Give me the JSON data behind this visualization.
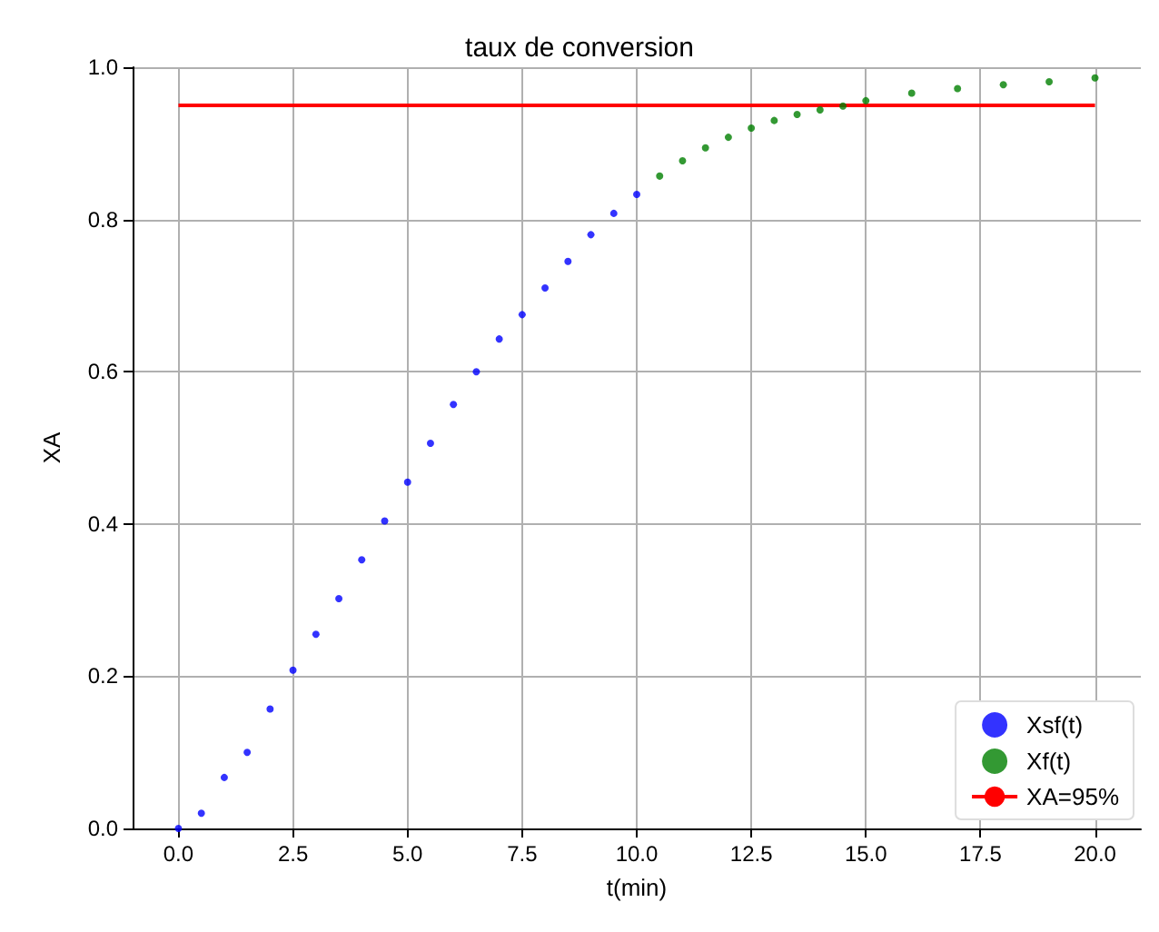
{
  "chart_data": {
    "type": "scatter",
    "title": "taux de conversion",
    "xlabel": "t(min)",
    "ylabel": "XA",
    "xlim": [
      -1,
      21
    ],
    "ylim": [
      0,
      1
    ],
    "xticks": [
      {
        "value": 0,
        "label": "0.0"
      },
      {
        "value": 2.5,
        "label": "2.5"
      },
      {
        "value": 5,
        "label": "5.0"
      },
      {
        "value": 7.5,
        "label": "7.5"
      },
      {
        "value": 10,
        "label": "10.0"
      },
      {
        "value": 12.5,
        "label": "12.5"
      },
      {
        "value": 15,
        "label": "15.0"
      },
      {
        "value": 17.5,
        "label": "17.5"
      },
      {
        "value": 20,
        "label": "20.0"
      }
    ],
    "yticks": [
      {
        "value": 0,
        "label": "0.0"
      },
      {
        "value": 0.2,
        "label": "0.2"
      },
      {
        "value": 0.4,
        "label": "0.4"
      },
      {
        "value": 0.6,
        "label": "0.6"
      },
      {
        "value": 0.8,
        "label": "0.8"
      },
      {
        "value": 1,
        "label": "1.0"
      }
    ],
    "grid": true,
    "legend": "bottom right",
    "marker": "circle",
    "series": [
      {
        "name": "Xsf(t)",
        "color": "#0000ff",
        "x": [
          0,
          0.5,
          1,
          1.5,
          2,
          2.5,
          3,
          3.5,
          4,
          4.5,
          5,
          5.5,
          6,
          6.5,
          7,
          7.5,
          8,
          8.5,
          9,
          9.5,
          10
        ],
        "values": [
          0,
          0.02,
          0.067,
          0.1,
          0.157,
          0.208,
          0.255,
          0.302,
          0.353,
          0.404,
          0.455,
          0.506,
          0.557,
          0.6,
          0.643,
          0.675,
          0.71,
          0.745,
          0.78,
          0.808,
          0.833
        ]
      },
      {
        "name": "Xf(t)",
        "color": "#008000",
        "x": [
          10.5,
          11,
          11.5,
          12,
          12.5,
          13,
          13.5,
          14,
          14.5,
          15,
          16,
          17,
          18,
          19,
          20
        ],
        "values": [
          0.857,
          0.877,
          0.894,
          0.908,
          0.92,
          0.93,
          0.938,
          0.944,
          0.949,
          0.956,
          0.966,
          0.972,
          0.977,
          0.981,
          0.986
        ]
      },
      {
        "name": "XA=95%",
        "type": "line",
        "marker": "none",
        "color": "#ff0000",
        "x": [
          0,
          20
        ],
        "values": [
          0.95,
          0.95
        ]
      }
    ]
  }
}
